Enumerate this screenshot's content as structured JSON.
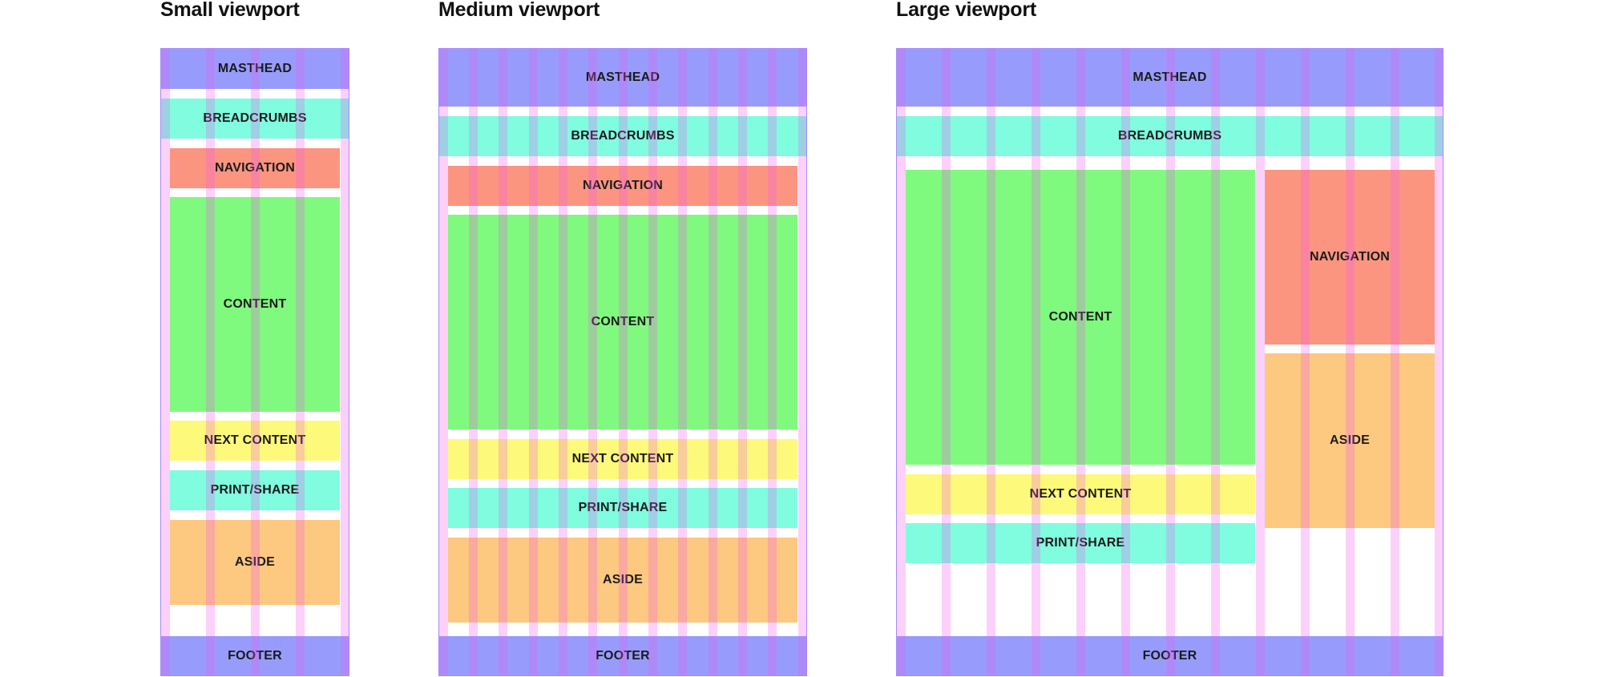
{
  "viewports": [
    {
      "title": "Small viewport",
      "blocks": {
        "masthead": "MASTHEAD",
        "breadcrumbs": "BREADCRUMBS",
        "navigation": "NAVIGATION",
        "content": "CONTENT",
        "next_content": "NEXT CONTENT",
        "print_share": "PRINT/SHARE",
        "aside": "ASIDE",
        "footer": "FOOTER"
      }
    },
    {
      "title": "Medium viewport",
      "blocks": {
        "masthead": "MASTHEAD",
        "breadcrumbs": "BREADCRUMBS",
        "navigation": "NAVIGATION",
        "content": "CONTENT",
        "next_content": "NEXT CONTENT",
        "print_share": "PRINT/SHARE",
        "aside": "ASIDE",
        "footer": "FOOTER"
      }
    },
    {
      "title": "Large viewport",
      "blocks": {
        "masthead": "MASTHEAD",
        "breadcrumbs": "BREADCRUMBS",
        "navigation": "NAVIGATION",
        "content": "CONTENT",
        "next_content": "NEXT CONTENT",
        "print_share": "PRINT/SHARE",
        "aside": "ASIDE",
        "footer": "FOOTER"
      }
    }
  ],
  "colors": {
    "masthead": "#979cfc",
    "breadcrumbs": "#80fcdf",
    "navigation": "#fc9580",
    "content": "#80f97f",
    "next_content": "#fdf97b",
    "print_share": "#80fcdf",
    "aside": "#fdc880",
    "footer": "#979cfc",
    "grid_gutter": "#f05af0"
  }
}
